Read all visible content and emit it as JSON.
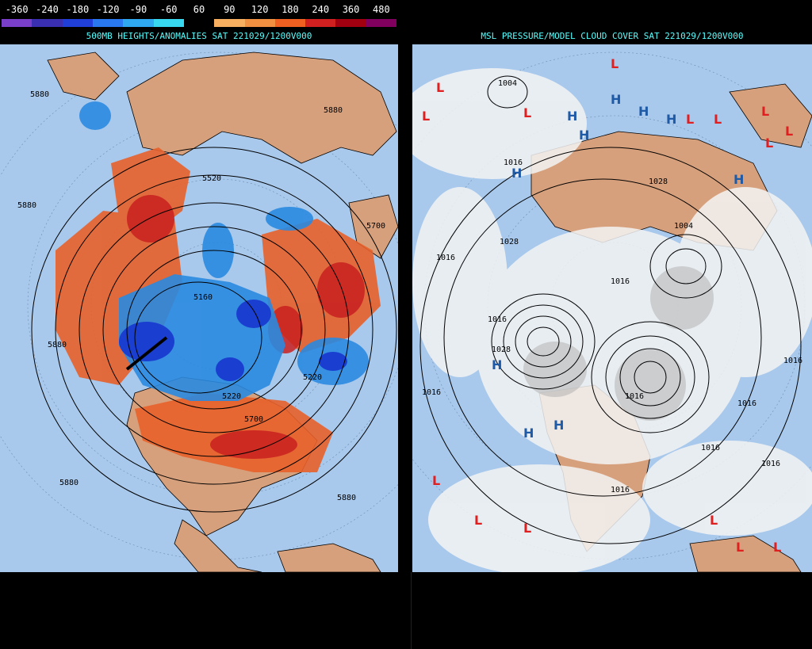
{
  "legend": {
    "ticks": [
      "-360",
      "-240",
      "-180",
      "-120",
      "-90",
      "-60",
      "60",
      "90",
      "120",
      "180",
      "240",
      "360",
      "480"
    ],
    "colors": [
      "#7a3fc8",
      "#3a2fb0",
      "#1f3fd8",
      "#2a78f0",
      "#30a8f0",
      "#38d8f0",
      "#000000",
      "#f8b060",
      "#f09040",
      "#f06020",
      "#d02020",
      "#a00010",
      "#800060"
    ]
  },
  "left_panel": {
    "title": "500MB HEIGHTS/ANOMALIES SAT 221029/1200V000",
    "contour_labels": [
      "5880",
      "5880",
      "5880",
      "5880",
      "5880",
      "5880",
      "5520",
      "5160",
      "5220",
      "5220",
      "5700",
      "5700"
    ]
  },
  "right_panel": {
    "title": "MSL PRESSURE/MODEL CLOUD COVER SAT 221029/1200V000",
    "isobar_labels": [
      "1004",
      "1016",
      "1016",
      "1016",
      "1016",
      "1016",
      "1016",
      "1016",
      "1016",
      "1028",
      "1028",
      "1028",
      "1004",
      "1016",
      "1016",
      "1016"
    ],
    "high_marker": "H",
    "low_marker": "L"
  },
  "colors": {
    "ocean": "#a8c8ec",
    "land": "#d7a07c",
    "title_text": "#55ffff",
    "warm_anomaly": "#e8602a",
    "cold_anomaly": "#2a8ae0",
    "high_symbol": "#1f5aa6",
    "low_symbol": "#e02020"
  }
}
